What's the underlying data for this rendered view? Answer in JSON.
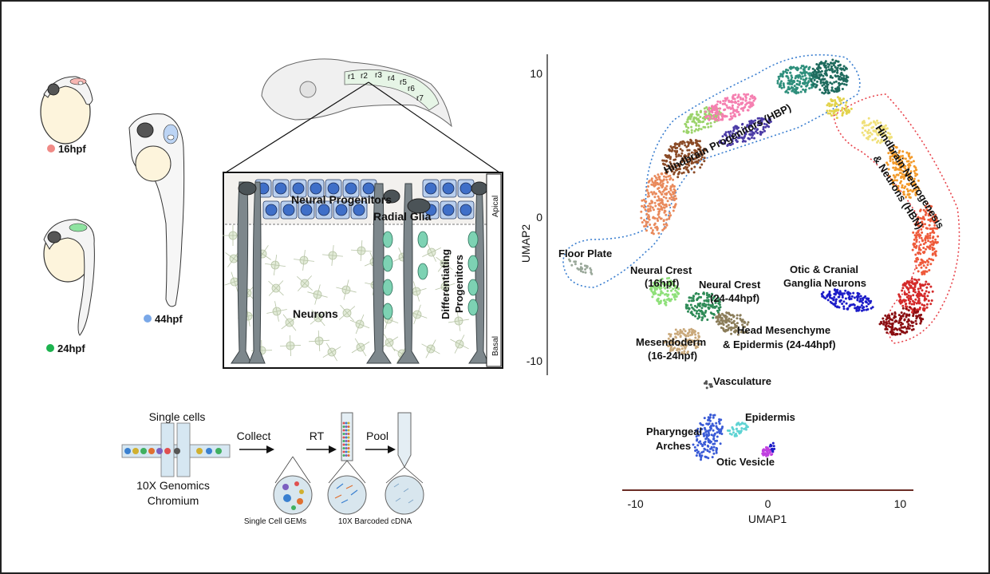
{
  "stages": [
    {
      "label": "16hpf",
      "color": "#f08a86"
    },
    {
      "label": "24hpf",
      "color": "#1db34f"
    },
    {
      "label": "44hpf",
      "color": "#7aa8e8"
    }
  ],
  "rhombomeres": [
    "r1",
    "r2",
    "r3",
    "r4",
    "r5",
    "r6",
    "r7"
  ],
  "tissue": {
    "neural_progenitors": "Neural Progenitors",
    "radial_glia": "Radial Glia",
    "neurons": "Neurons",
    "differentiating_line1": "Differentiating",
    "differentiating_line2": "Progenitors",
    "apical": "Apical",
    "basal": "Basal"
  },
  "workflow": {
    "single_cells": "Single cells",
    "instrument_line1": "10X Genomics",
    "instrument_line2": "Chromium",
    "collect": "Collect",
    "rt": "RT",
    "pool": "Pool",
    "gems": "Single Cell GEMs",
    "cdna": "10X Barcoded cDNA"
  },
  "chart_data": {
    "type": "scatter",
    "xlabel": "UMAP1",
    "ylabel": "UMAP2",
    "xlim": [
      -11,
      11
    ],
    "ylim": [
      -11,
      11
    ],
    "xticks": [
      -10,
      0,
      10
    ],
    "yticks": [
      10,
      0,
      -10
    ],
    "clusters": [
      {
        "label": "Hindbrain Progenitors (HBP)",
        "color": "#3b7fd0"
      },
      {
        "label": "Hindbrain Neurogenesis & Neurons (HBN)",
        "color": "#e8444c"
      },
      {
        "label": "Floor Plate",
        "color": "#9aa89a"
      },
      {
        "label": "Neural Crest (16hpf)",
        "color": "#8fe07a"
      },
      {
        "label": "Neural Crest (24-44hpf)",
        "color": "#2e8b57"
      },
      {
        "label": "Otic & Cranial Ganglia Neurons",
        "color": "#1c1cc8"
      },
      {
        "label": "Head Mesenchyme & Epidermis (24-44hpf)",
        "color": "#8b7d5a"
      },
      {
        "label": "Mesendoderm (16-24hpf)",
        "color": "#c9a87a"
      },
      {
        "label": "Vasculature",
        "color": "#555555"
      },
      {
        "label": "Epidermis",
        "color": "#5fd3d3"
      },
      {
        "label": "Pharyngeal Arches",
        "color": "#3a5bd6"
      },
      {
        "label": "Otic Vesicle",
        "color": "#c040e0"
      }
    ]
  }
}
